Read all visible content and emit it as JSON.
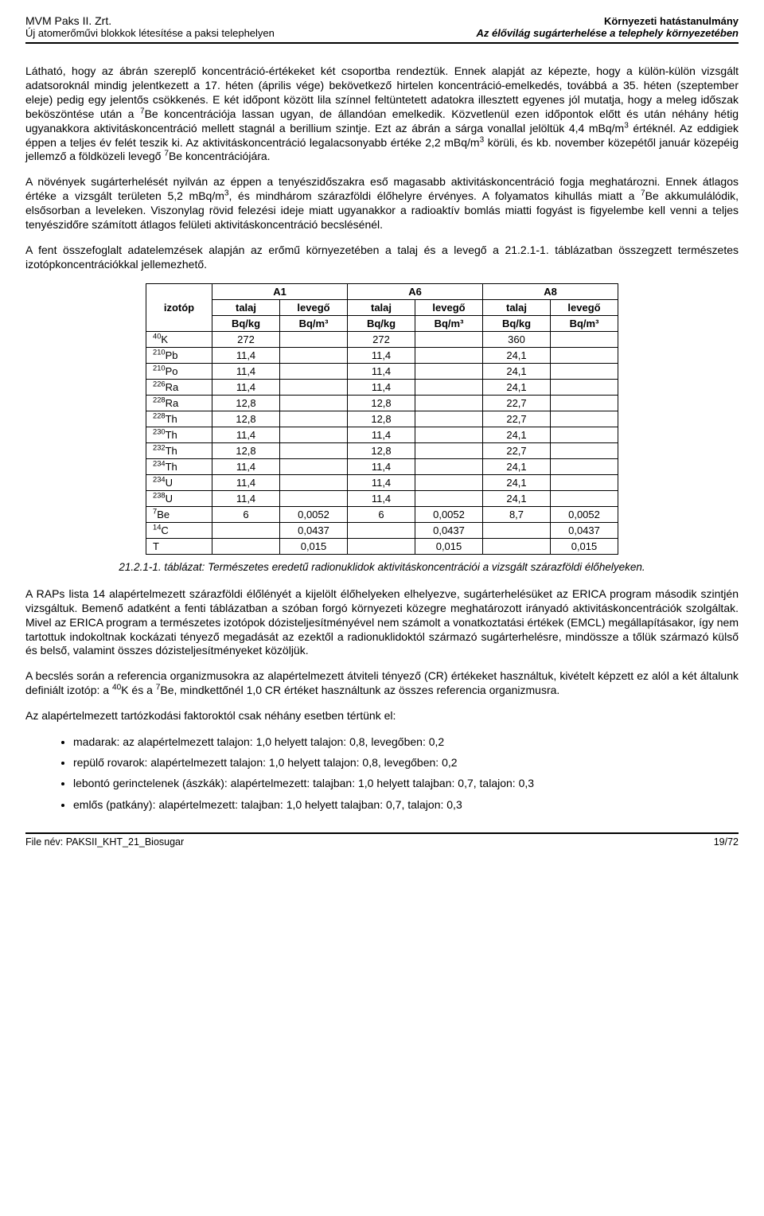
{
  "header": {
    "leftTop": "MVM Paks II. Zrt.",
    "rightTop": "Környezeti hatástanulmány",
    "leftBot": "Új atomerőművi blokkok létesítése a paksi telephelyen",
    "rightBot": "Az élővilág sugárterhelése a telephely környezetében"
  },
  "paragraphs": {
    "p1": "Látható, hogy az ábrán szereplő koncentráció-értékeket két csoportba rendeztük. Ennek alapját az képezte, hogy a külön-külön vizsgált adatsoroknál mindig jelentkezett a 17. héten (április vége) bekövetkező hirtelen koncentráció-emelkedés, továbbá a 35. héten (szeptember eleje) pedig egy jelentős csökkenés. E két időpont között lila színnel feltüntetett adatokra illesztett egyenes jól mutatja, hogy a meleg időszak beköszöntése után a ",
    "p1b": "Be koncentrációja lassan ugyan, de állandóan emelkedik. Közvetlenül ezen időpontok előtt és után néhány hétig ugyanakkora aktivitáskoncentráció mellett stagnál a berillium szintje. Ezt az ábrán a sárga vonallal jelöltük 4,4 mBq/m",
    "p1c": " értéknél. Az eddigiek éppen a teljes év felét teszik ki. Az aktivitáskoncentráció legalacsonyabb értéke 2,2 mBq/m",
    "p1d": " körüli, és kb. november közepétől január közepéig jellemző a földközeli levegő ",
    "p1e": "Be koncentrációjára.",
    "p2a": "A növények sugárterhelését nyilván az éppen a tenyészidőszakra eső magasabb aktivitáskoncentráció fogja meghatározni. Ennek átlagos értéke a vizsgált területen 5,2 mBq/m",
    "p2b": ", és mindhárom szárazföldi élőhelyre érvényes. A folyamatos kihullás miatt a ",
    "p2c": "Be akkumulálódik, elsősorban a leveleken. Viszonylag rövid felezési ideje miatt ugyanakkor a radioaktív bomlás miatti fogyást is figyelembe kell venni a teljes tenyészidőre számított átlagos felületi aktivitáskoncentráció becslésénél.",
    "p3": "A fent összefoglalt adatelemzések alapján az erőmű környezetében a talaj és a levegő a 21.2.1-1. táblázatban összegzett természetes izotópkoncentrációkkal jellemezhető.",
    "p4a": "A RAPs lista 14 alapértelmezett szárazföldi élőlényét a kijelölt élőhelyeken elhelyezve, sugárterhelésüket az ERICA program második szintjén vizsgáltuk. Bemenő adatként a fenti táblázatban a szóban forgó környezeti közegre meghatározott irányadó aktivitáskoncentrációk szolgáltak. Mivel az ERICA program a természetes izotópok dózisteljesítményével nem számolt a vonatkoztatási értékek (EMCL) megállapításakor, így nem tartottuk indokoltnak kockázati tényező megadását az ezektől a radionuklidoktól származó sugárterhelésre, mindössze a tőlük származó külső és belső, valamint összes dózisteljesítményeket közöljük.",
    "p5a": "A becslés során a referencia organizmusokra az alapértelmezett átviteli tényező (CR) értékeket használtuk, kivételt képzett ez alól a két általunk definiált izotóp: a ",
    "p5b": "K és a ",
    "p5c": "Be, mindkettőnél 1,0 CR értéket használtunk az összes referencia organizmusra.",
    "p6": "Az alapértelmezett tartózkodási faktoroktól csak néhány esetben tértünk el:"
  },
  "table": {
    "colIsotope": "izotóp",
    "groupA1": "A1",
    "groupA6": "A6",
    "groupA8": "A8",
    "subTalaj": "talaj",
    "subLevego": "levegő",
    "unitBqkg": "Bq/kg",
    "unitBqm3": "Bq/m³",
    "rows": [
      {
        "isoSup": "40",
        "isoEl": "K",
        "a1t": "272",
        "a1l": "",
        "a6t": "272",
        "a6l": "",
        "a8t": "360",
        "a8l": ""
      },
      {
        "isoSup": "210",
        "isoEl": "Pb",
        "a1t": "11,4",
        "a1l": "",
        "a6t": "11,4",
        "a6l": "",
        "a8t": "24,1",
        "a8l": ""
      },
      {
        "isoSup": "210",
        "isoEl": "Po",
        "a1t": "11,4",
        "a1l": "",
        "a6t": "11,4",
        "a6l": "",
        "a8t": "24,1",
        "a8l": ""
      },
      {
        "isoSup": "226",
        "isoEl": "Ra",
        "a1t": "11,4",
        "a1l": "",
        "a6t": "11,4",
        "a6l": "",
        "a8t": "24,1",
        "a8l": ""
      },
      {
        "isoSup": "228",
        "isoEl": "Ra",
        "a1t": "12,8",
        "a1l": "",
        "a6t": "12,8",
        "a6l": "",
        "a8t": "22,7",
        "a8l": ""
      },
      {
        "isoSup": "228",
        "isoEl": "Th",
        "a1t": "12,8",
        "a1l": "",
        "a6t": "12,8",
        "a6l": "",
        "a8t": "22,7",
        "a8l": ""
      },
      {
        "isoSup": "230",
        "isoEl": "Th",
        "a1t": "11,4",
        "a1l": "",
        "a6t": "11,4",
        "a6l": "",
        "a8t": "24,1",
        "a8l": ""
      },
      {
        "isoSup": "232",
        "isoEl": "Th",
        "a1t": "12,8",
        "a1l": "",
        "a6t": "12,8",
        "a6l": "",
        "a8t": "22,7",
        "a8l": ""
      },
      {
        "isoSup": "234",
        "isoEl": "Th",
        "a1t": "11,4",
        "a1l": "",
        "a6t": "11,4",
        "a6l": "",
        "a8t": "24,1",
        "a8l": ""
      },
      {
        "isoSup": "234",
        "isoEl": "U",
        "a1t": "11,4",
        "a1l": "",
        "a6t": "11,4",
        "a6l": "",
        "a8t": "24,1",
        "a8l": ""
      },
      {
        "isoSup": "238",
        "isoEl": "U",
        "a1t": "11,4",
        "a1l": "",
        "a6t": "11,4",
        "a6l": "",
        "a8t": "24,1",
        "a8l": ""
      },
      {
        "isoSup": "7",
        "isoEl": "Be",
        "a1t": "6",
        "a1l": "0,0052",
        "a6t": "6",
        "a6l": "0,0052",
        "a8t": "8,7",
        "a8l": "0,0052"
      },
      {
        "isoSup": "14",
        "isoEl": "C",
        "a1t": "",
        "a1l": "0,0437",
        "a6t": "",
        "a6l": "0,0437",
        "a8t": "",
        "a8l": "0,0437"
      },
      {
        "isoSup": "",
        "isoEl": "T",
        "a1t": "",
        "a1l": "0,015",
        "a6t": "",
        "a6l": "0,015",
        "a8t": "",
        "a8l": "0,015"
      }
    ]
  },
  "caption": "21.2.1-1. táblázat: Természetes eredetű radionuklidok aktivitáskoncentrációi a vizsgált szárazföldi élőhelyeken.",
  "bullets": [
    "madarak: az alapértelmezett talajon: 1,0 helyett talajon: 0,8, levegőben: 0,2",
    "repülő rovarok: alapértelmezett talajon: 1,0 helyett talajon: 0,8, levegőben: 0,2",
    "lebontó gerinctelenek (ászkák): alapértelmezett: talajban: 1,0 helyett talajban: 0,7, talajon: 0,3",
    "emlős (patkány): alapértelmezett: talajban: 1,0 helyett talajban: 0,7, talajon: 0,3"
  ],
  "footer": {
    "left": "File név: PAKSII_KHT_21_Biosugar",
    "right": "19/72"
  }
}
